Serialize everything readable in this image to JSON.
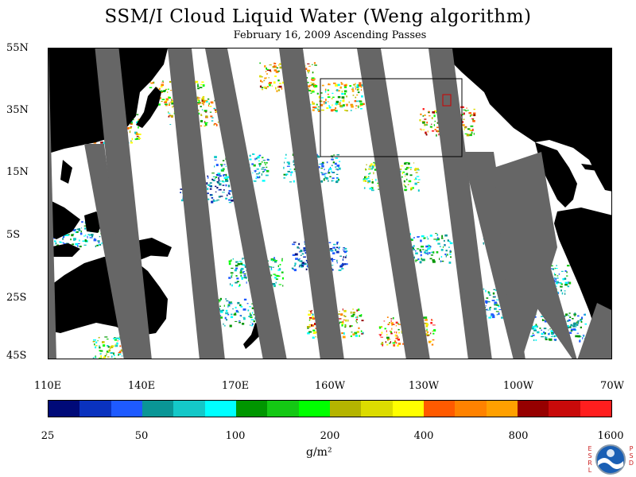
{
  "title": "SSM/I Cloud Liquid Water (Weng algorithm)",
  "subtitle": "February 16, 2009  Ascending Passes",
  "y_axis_labels": [
    "55N",
    "35N",
    "15N",
    "5S",
    "25S",
    "45S"
  ],
  "x_axis_labels": [
    "110E",
    "140E",
    "170E",
    "160W",
    "130W",
    "100W",
    "70W"
  ],
  "colorbar": {
    "colors": [
      "#000a78",
      "#0a32be",
      "#1e5aff",
      "#0a9696",
      "#14c8c8",
      "#00ffff",
      "#009600",
      "#14c814",
      "#00ff00",
      "#b4b400",
      "#dcdc00",
      "#ffff00",
      "#ff5a00",
      "#ff8200",
      "#ffa000",
      "#960000",
      "#c80a0a",
      "#ff1e1e"
    ],
    "labels": [
      "25",
      "50",
      "100",
      "200",
      "400",
      "800",
      "1600"
    ]
  },
  "units": "g/m²",
  "logo": {
    "left_letters": "ESRL",
    "right_letters": "PSD",
    "center": "NOAA"
  }
}
